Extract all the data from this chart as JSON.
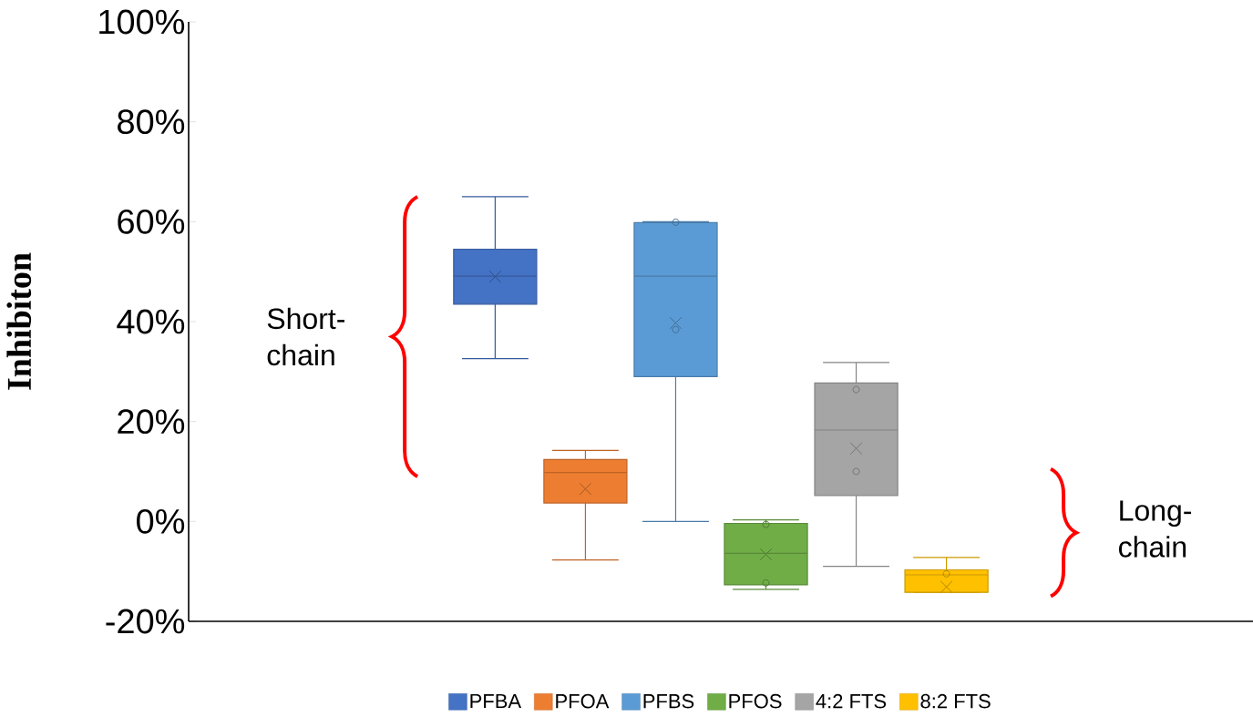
{
  "chart_data": {
    "type": "box",
    "ylabel": "Inhibiton",
    "categories": [
      null
    ],
    "ylim": [
      -20,
      100
    ],
    "yticks": [
      {
        "value": -20,
        "label": "-20%"
      },
      {
        "value": 0,
        "label": "0%"
      },
      {
        "value": 20,
        "label": "20%"
      },
      {
        "value": 40,
        "label": "40%"
      },
      {
        "value": 60,
        "label": "60%"
      },
      {
        "value": 80,
        "label": "80%"
      },
      {
        "value": 100,
        "label": "100%"
      }
    ],
    "legend": "bottom",
    "annotations": [
      "Short-chain",
      "Long-chain"
    ],
    "series": [
      {
        "name": "PFBA",
        "color": "#4472c4",
        "boxes": [
          {
            "low": 32.6,
            "q1": 43.5,
            "median": 49.1,
            "q3": 54.5,
            "high": 65.0,
            "mean": 49.0
          }
        ]
      },
      {
        "name": "PFOA",
        "color": "#ed7d31",
        "boxes": [
          {
            "low": -7.7,
            "q1": 3.7,
            "median": 9.8,
            "q3": 12.4,
            "high": 14.2,
            "mean": 6.5
          }
        ]
      },
      {
        "name": "PFBS",
        "color": "#5b9bd5",
        "boxes": [
          {
            "low": 0,
            "q1": 29.0,
            "median": 49.1,
            "q3": 59.8,
            "high": 60.0,
            "mean": 39.7,
            "outliers": [
              59.9,
              38.4
            ]
          }
        ]
      },
      {
        "name": "PFOS",
        "color": "#70ad47",
        "boxes": [
          {
            "low": -13.6,
            "q1": -12.7,
            "median": -6.4,
            "q3": -0.4,
            "high": 0.3,
            "mean": -6.6,
            "outliers": [
              -0.6,
              -12.3
            ]
          }
        ]
      },
      {
        "name": "4:2 FTS",
        "color": "#a5a5a5",
        "boxes": [
          {
            "low": -9.0,
            "q1": 5.2,
            "median": 18.3,
            "q3": 27.7,
            "high": 31.8,
            "mean": 14.6,
            "outliers": [
              26.4,
              10.0
            ]
          }
        ]
      },
      {
        "name": "8:2 FTS",
        "color": "#ffc000",
        "boxes": [
          {
            "low": -14.2,
            "q1": -14.2,
            "median": -10.7,
            "q3": -9.7,
            "high": -7.2,
            "mean": -13.1,
            "outliers": [
              -10.5
            ]
          }
        ]
      }
    ]
  }
}
